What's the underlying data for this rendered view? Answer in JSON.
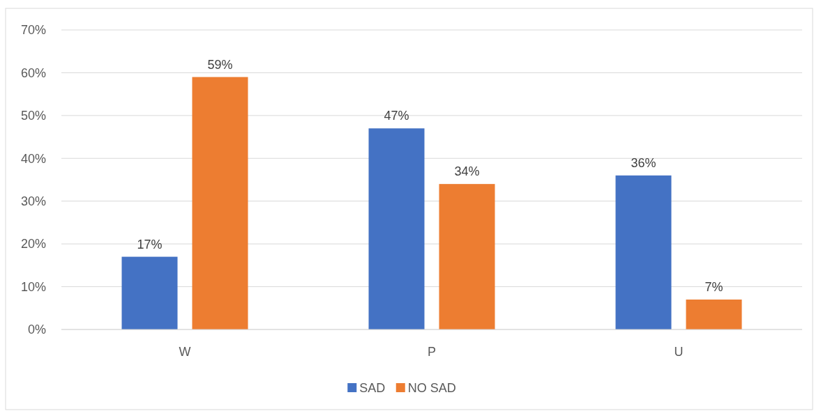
{
  "chart_data": {
    "type": "bar",
    "categories": [
      "W",
      "P",
      "U"
    ],
    "series": [
      {
        "name": "SAD",
        "color": "#4472c4",
        "values": [
          17,
          47,
          36
        ],
        "value_labels": [
          "17%",
          "47%",
          "36%"
        ]
      },
      {
        "name": "NO SAD",
        "color": "#ed7d31",
        "values": [
          59,
          34,
          7
        ],
        "value_labels": [
          "59%",
          "34%",
          "7%"
        ]
      }
    ],
    "ylim": [
      0,
      70
    ],
    "yticks": [
      {
        "value": 0,
        "label": "0%"
      },
      {
        "value": 10,
        "label": "10%"
      },
      {
        "value": 20,
        "label": "20%"
      },
      {
        "value": 30,
        "label": "30%"
      },
      {
        "value": 40,
        "label": "40%"
      },
      {
        "value": 50,
        "label": "50%"
      },
      {
        "value": 60,
        "label": "60%"
      },
      {
        "value": 70,
        "label": "70%"
      }
    ],
    "grid": "y",
    "legend": "bottom"
  }
}
